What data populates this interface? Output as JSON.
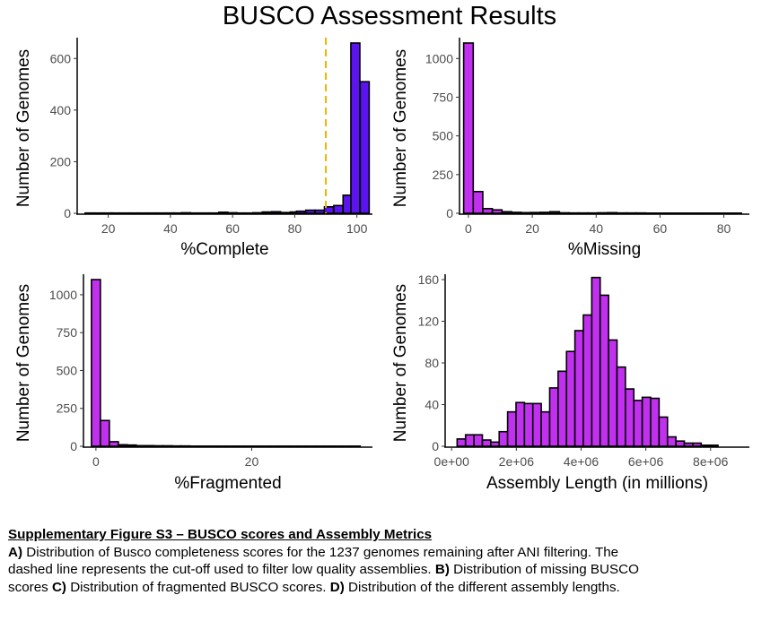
{
  "title": "BUSCO Assessment Results",
  "colors": {
    "complete_bar": "#5b13f0",
    "purple_bar": "#c030ee",
    "cutoff_line": "#f0b400",
    "axis": "#000000"
  },
  "chart_data": [
    {
      "panel": "A",
      "type": "bar",
      "xlabel": "%Complete",
      "ylabel": "Number of Genomes",
      "xlim": [
        10,
        105
      ],
      "ylim": [
        0,
        660
      ],
      "xticks": [
        "20",
        "40",
        "60",
        "80",
        "100"
      ],
      "yticks": [
        "0",
        "200",
        "400",
        "600"
      ],
      "bin_width": 2.9,
      "bins": [
        {
          "x": 14,
          "y": 1
        },
        {
          "x": 17,
          "y": 1
        },
        {
          "x": 20,
          "y": 1
        },
        {
          "x": 22,
          "y": 1
        },
        {
          "x": 25,
          "y": 1
        },
        {
          "x": 28,
          "y": 1
        },
        {
          "x": 31,
          "y": 1
        },
        {
          "x": 34,
          "y": 1
        },
        {
          "x": 37,
          "y": 1
        },
        {
          "x": 40,
          "y": 1
        },
        {
          "x": 42,
          "y": 1
        },
        {
          "x": 45,
          "y": 2
        },
        {
          "x": 48,
          "y": 1
        },
        {
          "x": 51,
          "y": 1
        },
        {
          "x": 54,
          "y": 1
        },
        {
          "x": 57,
          "y": 4
        },
        {
          "x": 60,
          "y": 2
        },
        {
          "x": 62,
          "y": 1
        },
        {
          "x": 65,
          "y": 1
        },
        {
          "x": 68,
          "y": 2
        },
        {
          "x": 71,
          "y": 5
        },
        {
          "x": 74,
          "y": 6
        },
        {
          "x": 77,
          "y": 3
        },
        {
          "x": 80,
          "y": 5
        },
        {
          "x": 82,
          "y": 8
        },
        {
          "x": 85,
          "y": 12
        },
        {
          "x": 88,
          "y": 12
        },
        {
          "x": 91,
          "y": 25
        },
        {
          "x": 94,
          "y": 30
        },
        {
          "x": 97,
          "y": 70
        },
        {
          "x": 99.5,
          "y": 660
        },
        {
          "x": 102.5,
          "y": 510
        }
      ],
      "cutoff_x": 90
    },
    {
      "panel": "B",
      "type": "bar",
      "xlabel": "%Missing",
      "ylabel": "Number of Genomes",
      "xlim": [
        -2.8,
        88
      ],
      "ylim": [
        0,
        1100
      ],
      "xticks": [
        "0",
        "20",
        "40",
        "60",
        "80"
      ],
      "yticks": [
        "0",
        "250",
        "500",
        "750",
        "1000"
      ],
      "bin_width": 3,
      "bins": [
        {
          "x": 0,
          "y": 1100
        },
        {
          "x": 3,
          "y": 140
        },
        {
          "x": 6,
          "y": 30
        },
        {
          "x": 9,
          "y": 22
        },
        {
          "x": 12,
          "y": 10
        },
        {
          "x": 15,
          "y": 6
        },
        {
          "x": 18,
          "y": 4
        },
        {
          "x": 21,
          "y": 5
        },
        {
          "x": 24,
          "y": 6
        },
        {
          "x": 27,
          "y": 10
        },
        {
          "x": 30,
          "y": 3
        },
        {
          "x": 33,
          "y": 2
        },
        {
          "x": 36,
          "y": 2
        },
        {
          "x": 39,
          "y": 2
        },
        {
          "x": 42,
          "y": 3
        },
        {
          "x": 45,
          "y": 4
        },
        {
          "x": 48,
          "y": 2
        },
        {
          "x": 51,
          "y": 2
        },
        {
          "x": 54,
          "y": 2
        },
        {
          "x": 57,
          "y": 1
        },
        {
          "x": 60,
          "y": 1
        },
        {
          "x": 63,
          "y": 1
        },
        {
          "x": 66,
          "y": 1
        },
        {
          "x": 69,
          "y": 1
        },
        {
          "x": 72,
          "y": 1
        },
        {
          "x": 75,
          "y": 1
        },
        {
          "x": 78,
          "y": 1
        },
        {
          "x": 81,
          "y": 1
        },
        {
          "x": 84,
          "y": 1
        }
      ]
    },
    {
      "panel": "C",
      "type": "bar",
      "xlabel": "%Fragmented",
      "ylabel": "Number of Genomes",
      "xlim": [
        -1.6,
        35.5
      ],
      "ylim": [
        0,
        1100
      ],
      "xticks": [
        "0",
        "20"
      ],
      "yticks": [
        "0",
        "250",
        "500",
        "750",
        "1000"
      ],
      "bin_width": 1.15,
      "bins": [
        {
          "x": 0,
          "y": 1100
        },
        {
          "x": 1.15,
          "y": 170
        },
        {
          "x": 2.3,
          "y": 30
        },
        {
          "x": 3.45,
          "y": 10
        },
        {
          "x": 4.6,
          "y": 8
        },
        {
          "x": 5.75,
          "y": 4
        },
        {
          "x": 6.9,
          "y": 4
        },
        {
          "x": 8.05,
          "y": 3
        },
        {
          "x": 9.2,
          "y": 3
        },
        {
          "x": 10.35,
          "y": 2
        },
        {
          "x": 11.5,
          "y": 2
        },
        {
          "x": 12.65,
          "y": 1
        },
        {
          "x": 13.8,
          "y": 1
        },
        {
          "x": 14.95,
          "y": 1
        },
        {
          "x": 16.1,
          "y": 1
        },
        {
          "x": 17.25,
          "y": 1
        },
        {
          "x": 18.4,
          "y": 1
        },
        {
          "x": 19.55,
          "y": 1
        },
        {
          "x": 20.7,
          "y": 1
        },
        {
          "x": 21.85,
          "y": 1
        },
        {
          "x": 23,
          "y": 1
        },
        {
          "x": 24.15,
          "y": 1
        },
        {
          "x": 25.3,
          "y": 1
        },
        {
          "x": 26.45,
          "y": 1
        },
        {
          "x": 27.6,
          "y": 1
        },
        {
          "x": 28.75,
          "y": 1
        },
        {
          "x": 29.9,
          "y": 1
        },
        {
          "x": 31.05,
          "y": 1
        },
        {
          "x": 32.2,
          "y": 1
        },
        {
          "x": 33.35,
          "y": 1
        }
      ]
    },
    {
      "panel": "D",
      "type": "bar",
      "xlabel": "Assembly Length (in millions)",
      "ylabel": "Number of Genomes",
      "xlim": [
        -200000,
        9200000
      ],
      "ylim": [
        0,
        160
      ],
      "xticks": [
        "0e+00",
        "2e+06",
        "4e+06",
        "6e+06",
        "8e+06"
      ],
      "yticks": [
        "0",
        "40",
        "80",
        "120",
        "160"
      ],
      "bin_width": 260000,
      "bins": [
        {
          "x": 300000,
          "y": 7
        },
        {
          "x": 560000,
          "y": 11
        },
        {
          "x": 820000,
          "y": 11
        },
        {
          "x": 1080000,
          "y": 6
        },
        {
          "x": 1340000,
          "y": 4
        },
        {
          "x": 1600000,
          "y": 14
        },
        {
          "x": 1860000,
          "y": 33
        },
        {
          "x": 2120000,
          "y": 42
        },
        {
          "x": 2380000,
          "y": 41
        },
        {
          "x": 2640000,
          "y": 41
        },
        {
          "x": 2900000,
          "y": 33
        },
        {
          "x": 3160000,
          "y": 56
        },
        {
          "x": 3420000,
          "y": 72
        },
        {
          "x": 3680000,
          "y": 91
        },
        {
          "x": 3940000,
          "y": 111
        },
        {
          "x": 4200000,
          "y": 126
        },
        {
          "x": 4460000,
          "y": 162
        },
        {
          "x": 4720000,
          "y": 145
        },
        {
          "x": 4980000,
          "y": 102
        },
        {
          "x": 5240000,
          "y": 76
        },
        {
          "x": 5500000,
          "y": 55
        },
        {
          "x": 5760000,
          "y": 44
        },
        {
          "x": 6020000,
          "y": 47
        },
        {
          "x": 6280000,
          "y": 46
        },
        {
          "x": 6540000,
          "y": 28
        },
        {
          "x": 6800000,
          "y": 9
        },
        {
          "x": 7060000,
          "y": 5
        },
        {
          "x": 7320000,
          "y": 3
        },
        {
          "x": 7580000,
          "y": 3
        },
        {
          "x": 7840000,
          "y": 1
        },
        {
          "x": 8100000,
          "y": 1
        }
      ]
    }
  ],
  "caption": {
    "heading": "Supplementary Figure S3 – BUSCO scores and Assembly Metrics",
    "lines": [
      [
        {
          "text": "A)",
          "bold": true
        },
        {
          "text": " Distribution of Busco completeness scores for the 1237 genomes remaining after ANI filtering. The",
          "bold": false
        }
      ],
      [
        {
          "text": "dashed line represents the cut-off used to filter low quality assemblies. ",
          "bold": false
        },
        {
          "text": "B)",
          "bold": true
        },
        {
          "text": " Distribution of  missing BUSCO",
          "bold": false
        }
      ],
      [
        {
          "text": "scores ",
          "bold": false
        },
        {
          "text": "C)",
          "bold": true
        },
        {
          "text": " Distribution of fragmented BUSCO scores. ",
          "bold": false
        },
        {
          "text": "D)",
          "bold": true
        },
        {
          "text": " Distribution of the different assembly lengths.",
          "bold": false
        }
      ]
    ]
  }
}
